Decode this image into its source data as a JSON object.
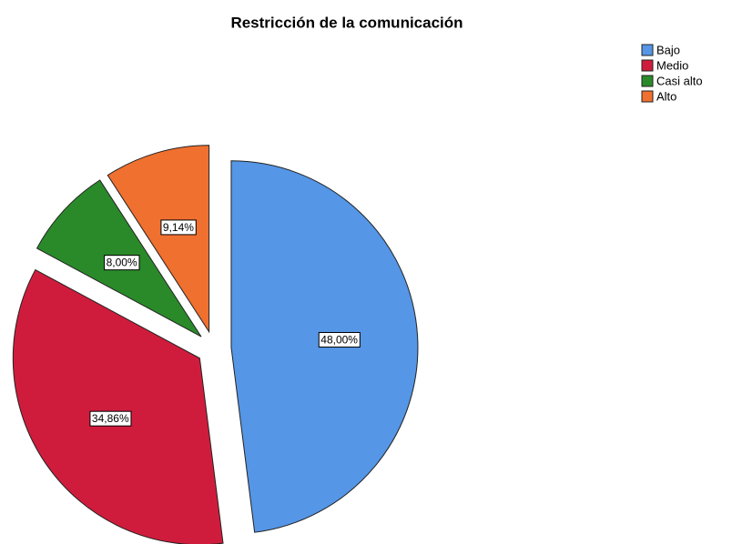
{
  "chart_data": {
    "type": "pie",
    "title": "Restricción de la comunicación",
    "categories": [
      "Bajo",
      "Medio",
      "Casi alto",
      "Alto"
    ],
    "values": [
      48.0,
      34.86,
      8.0,
      9.14
    ],
    "value_labels": [
      "48,00%",
      "34,86%",
      "8,00%",
      "9,14%"
    ],
    "colors": [
      "#5596e6",
      "#d01c3c",
      "#2a8a2a",
      "#f07030"
    ],
    "legend": "top-right"
  }
}
